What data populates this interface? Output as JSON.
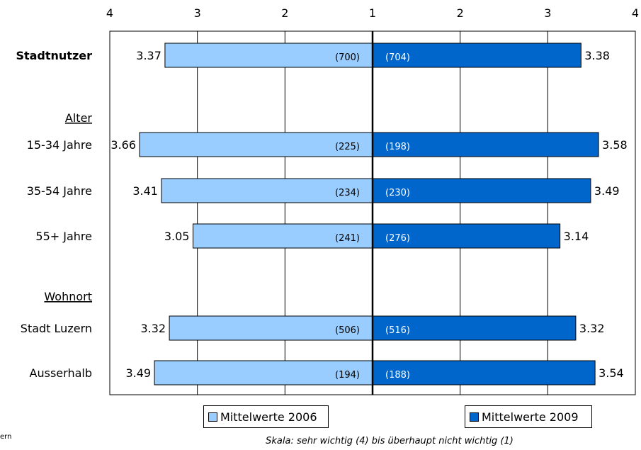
{
  "chart_data": {
    "type": "bar",
    "orientation": "horizontal-diverging",
    "x_ticks_left": [
      "4",
      "3",
      "2",
      "1"
    ],
    "x_ticks_right": [
      "2",
      "3",
      "4"
    ],
    "xlim": [
      1,
      4
    ],
    "grid": true,
    "series": [
      {
        "name": "Mittelwerte 2006",
        "color": "#99ccff"
      },
      {
        "name": "Mittelwerte 2009",
        "color": "#0066cc"
      }
    ],
    "rows": [
      {
        "label": "Stadtnutzer",
        "bold": true,
        "values": [
          3.37,
          3.38
        ],
        "labels": [
          "3.37",
          "3.38"
        ],
        "n": [
          "(700)",
          "(704)"
        ]
      },
      {
        "label": "Alter",
        "header": true
      },
      {
        "label": "15-34 Jahre",
        "values": [
          3.66,
          3.58
        ],
        "labels": [
          "3.66",
          "3.58"
        ],
        "n": [
          "(225)",
          "(198)"
        ]
      },
      {
        "label": "35-54 Jahre",
        "values": [
          3.41,
          3.49
        ],
        "labels": [
          "3.41",
          "3.49"
        ],
        "n": [
          "(234)",
          "(230)"
        ]
      },
      {
        "label": "55+ Jahre",
        "values": [
          3.05,
          3.14
        ],
        "labels": [
          "3.05",
          "3.14"
        ],
        "n": [
          "(241)",
          "(276)"
        ]
      },
      {
        "label": "Wohnort",
        "header": true
      },
      {
        "label": "Stadt Luzern",
        "values": [
          3.32,
          3.32
        ],
        "labels": [
          "3.32",
          "3.32"
        ],
        "n": [
          "(506)",
          "(516)"
        ]
      },
      {
        "label": "Ausserhalb",
        "values": [
          3.49,
          3.54
        ],
        "labels": [
          "3.49",
          "3.54"
        ],
        "n": [
          "(194)",
          "(188)"
        ]
      }
    ],
    "note": "Skala: sehr wichtig (4) bis überhaupt nicht wichtig (1)"
  },
  "edge_text": "ern"
}
